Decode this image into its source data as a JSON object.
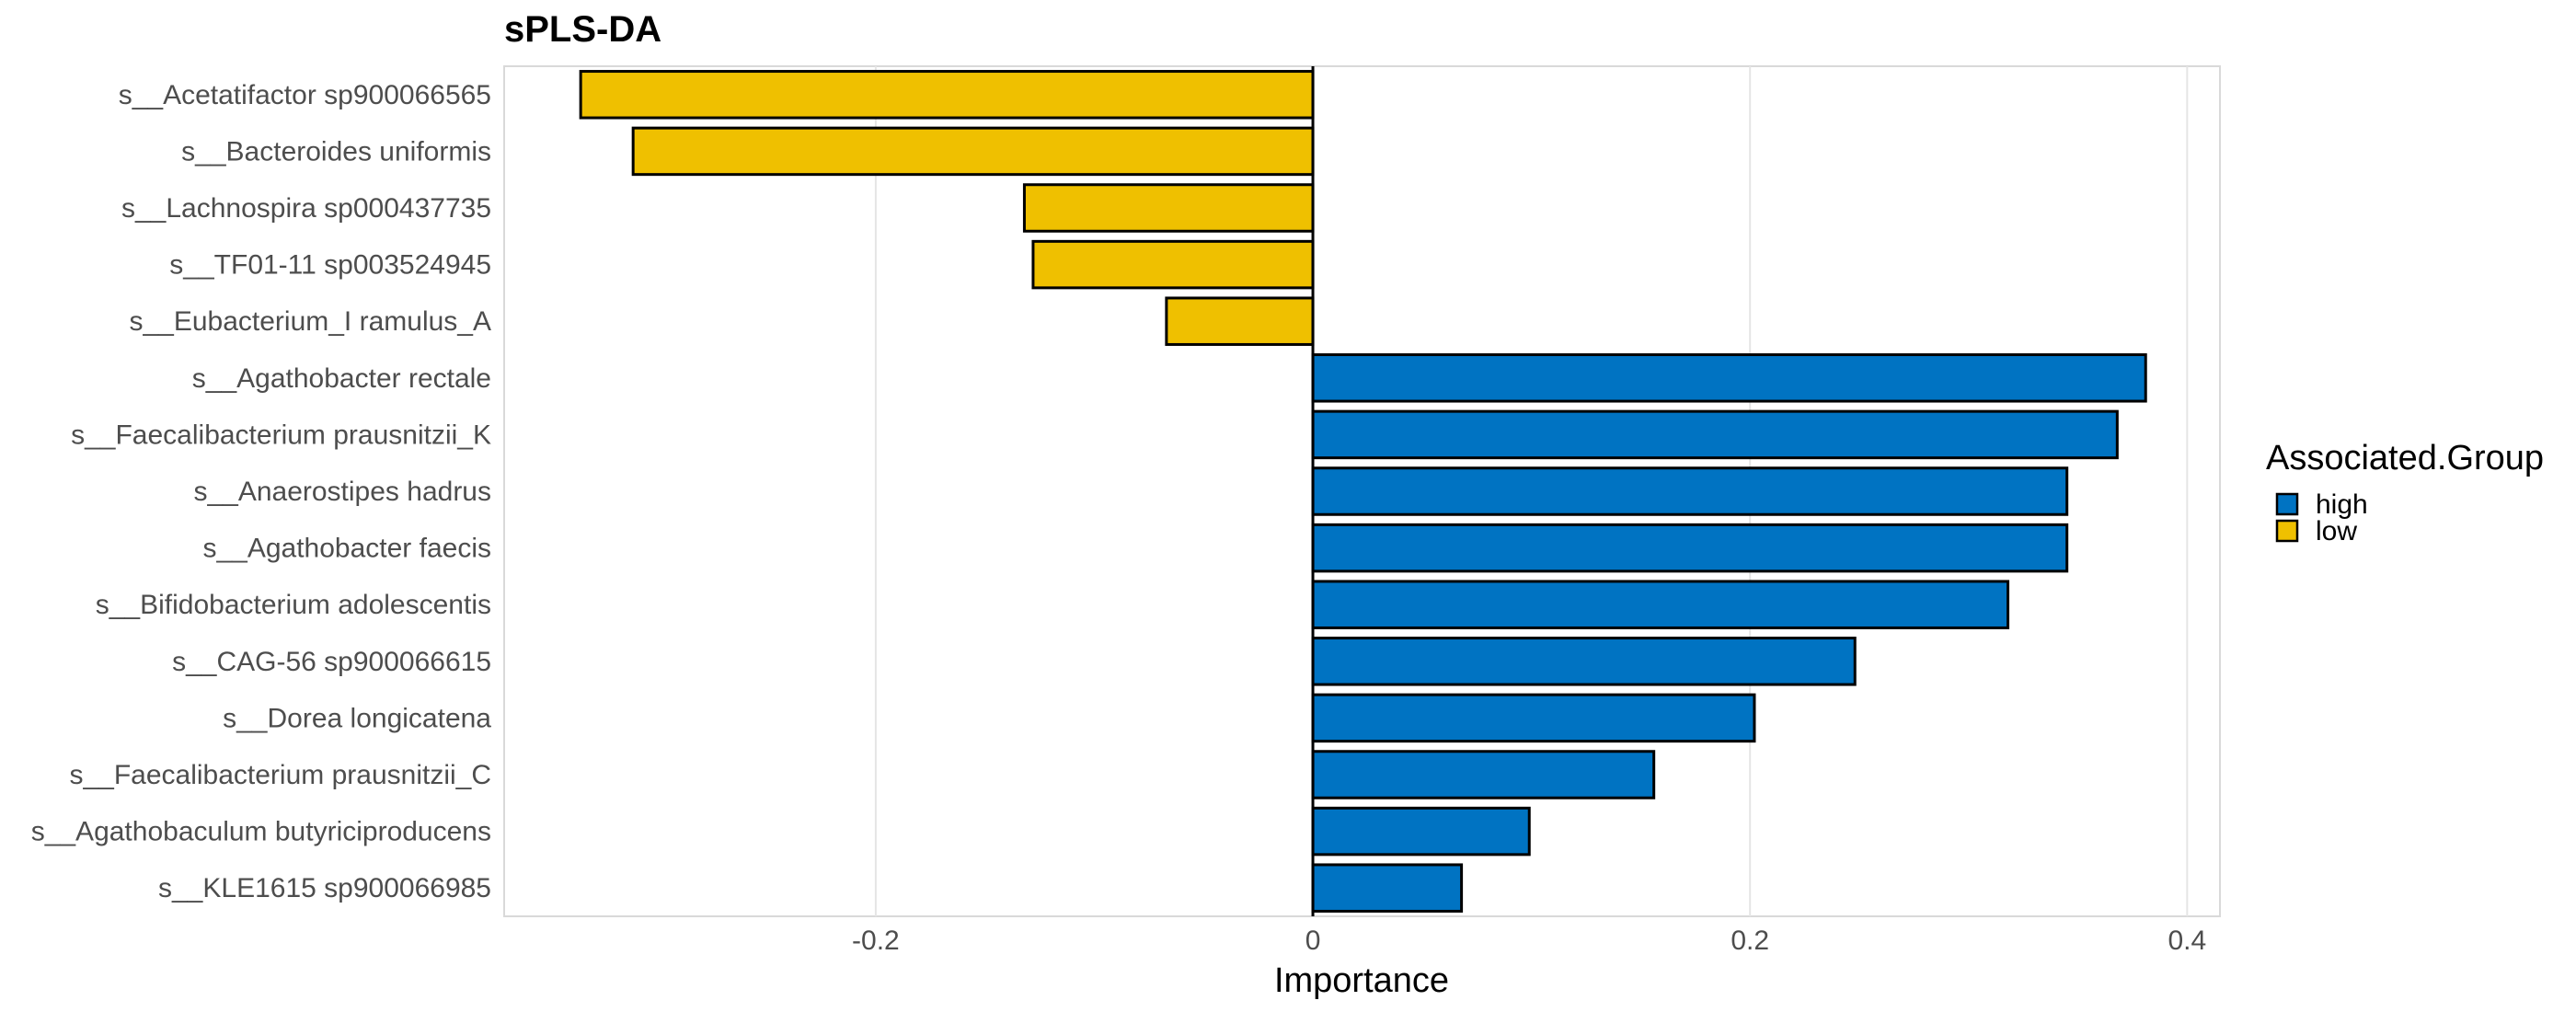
{
  "chart_data": {
    "type": "bar",
    "orientation": "horizontal",
    "title": "sPLS-DA",
    "xlabel": "Importance",
    "ylabel": "",
    "xlim": [
      -0.37,
      0.415
    ],
    "xticks": [
      -0.2,
      0,
      0.2,
      0.4
    ],
    "xtick_labels": [
      "-0.2",
      "0",
      "0.2",
      "0.4"
    ],
    "grid": true,
    "legend": {
      "title": "Associated.Group",
      "position": "right",
      "entries": [
        {
          "label": "high",
          "color": "#0073C2"
        },
        {
          "label": "low",
          "color": "#EFC000"
        }
      ]
    },
    "categories": [
      "s__Acetatifactor sp900066565",
      "s__Bacteroides uniformis",
      "s__Lachnospira sp000437735",
      "s__TF01-11 sp003524945",
      "s__Eubacterium_I ramulus_A",
      "s__Agathobacter rectale",
      "s__Faecalibacterium prausnitzii_K",
      "s__Anaerostipes hadrus",
      "s__Agathobacter faecis",
      "s__Bifidobacterium adolescentis",
      "s__CAG-56 sp900066615",
      "s__Dorea longicatena",
      "s__Faecalibacterium prausnitzii_C",
      "s__Agathobaculum butyriciproducens",
      "s__KLE1615 sp900066985"
    ],
    "values": [
      -0.335,
      -0.311,
      -0.132,
      -0.128,
      -0.067,
      0.381,
      0.368,
      0.345,
      0.345,
      0.318,
      0.248,
      0.202,
      0.156,
      0.099,
      0.068
    ],
    "groups": [
      "low",
      "low",
      "low",
      "low",
      "low",
      "high",
      "high",
      "high",
      "high",
      "high",
      "high",
      "high",
      "high",
      "high",
      "high"
    ]
  }
}
